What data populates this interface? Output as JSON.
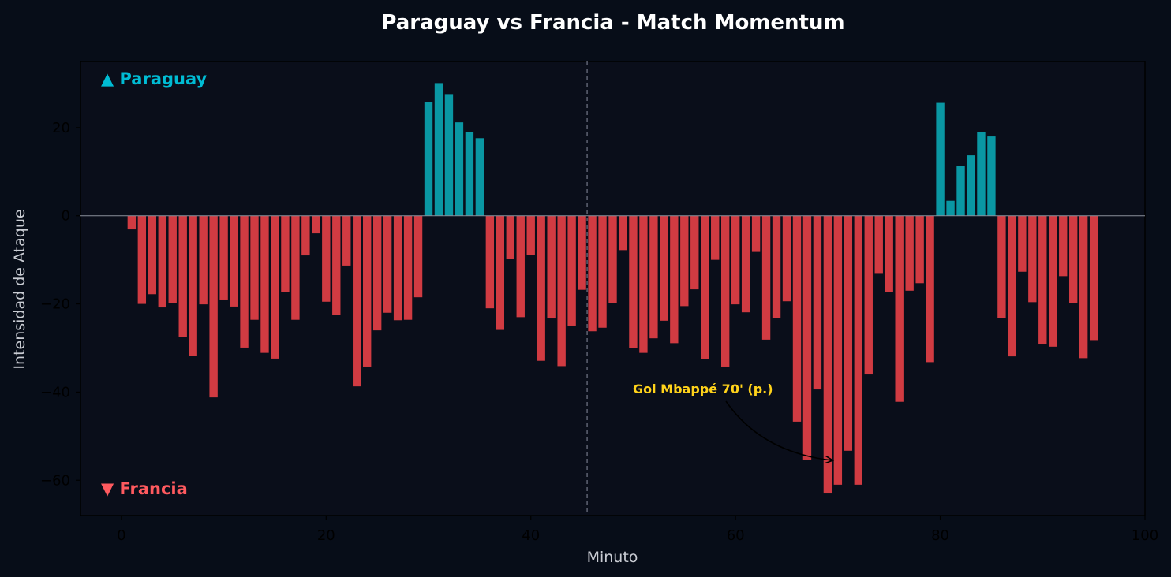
{
  "chart_data": {
    "type": "bar",
    "title": "Paraguay vs Francia - Match Momentum",
    "xlabel": "Minuto",
    "ylabel": "Intensidad de Ataque",
    "xlim": [
      -4,
      100
    ],
    "ylim": [
      -68,
      35
    ],
    "xticks": [
      0,
      20,
      40,
      60,
      80,
      100
    ],
    "yticks": [
      -60,
      -40,
      -20,
      0,
      20
    ],
    "ytick_labels": [
      "−60",
      "−40",
      "−20",
      "0",
      "20"
    ],
    "halftime_minute": 45.5,
    "series": [
      {
        "name": "▲ Paraguay",
        "color": "#0a97a3",
        "label_color": "#00bcd4"
      },
      {
        "name": "▼ Francia",
        "color": "#d13b42",
        "label_color": "#ff5a5f"
      }
    ],
    "x": [
      1,
      2,
      3,
      4,
      5,
      6,
      7,
      8,
      9,
      10,
      11,
      12,
      13,
      14,
      15,
      16,
      17,
      18,
      19,
      20,
      21,
      22,
      23,
      24,
      25,
      26,
      27,
      28,
      29,
      30,
      31,
      32,
      33,
      34,
      35,
      36,
      37,
      38,
      39,
      40,
      41,
      42,
      43,
      44,
      45,
      46,
      47,
      48,
      49,
      50,
      51,
      52,
      53,
      54,
      55,
      56,
      57,
      58,
      59,
      60,
      61,
      62,
      63,
      64,
      65,
      66,
      67,
      68,
      69,
      70,
      71,
      72,
      73,
      74,
      75,
      76,
      77,
      78,
      79,
      80,
      81,
      82,
      83,
      84,
      85,
      86,
      87,
      88,
      89,
      90,
      91,
      92,
      93,
      94,
      95
    ],
    "values": [
      -3.1,
      -20,
      -17.8,
      -20.8,
      -19.8,
      -27.5,
      -31.7,
      -20.1,
      -41.2,
      -19,
      -20.6,
      -29.9,
      -23.6,
      -31.1,
      -32.4,
      -17.3,
      -23.6,
      -9,
      -4,
      -19.5,
      -22.5,
      -11.3,
      -38.7,
      -34.2,
      -26,
      -22,
      -23.7,
      -23.6,
      -18.5,
      25.7,
      30.1,
      27.6,
      21.2,
      19,
      17.6,
      -21,
      -25.9,
      -9.8,
      -23,
      -8.9,
      -32.9,
      -23.3,
      -34.1,
      -24.9,
      -16.8,
      -26.2,
      -25.4,
      -19.8,
      -7.8,
      -30,
      -31.1,
      -27.8,
      -23.8,
      -28.9,
      -20.5,
      -16.7,
      -32.5,
      -10,
      -34.2,
      -20.1,
      -21.9,
      -8.2,
      -28.1,
      -23.2,
      -19.4,
      -46.7,
      -55.4,
      -39.4,
      -63,
      -61,
      -53.3,
      -61,
      -36,
      -13,
      -17.3,
      -42.2,
      -17,
      -15.3,
      -33.2,
      25.6,
      3.4,
      11.3,
      13.7,
      19,
      18,
      -23.2,
      -31.9,
      -12.7,
      -19.6,
      -29.2,
      -29.7,
      -13.7,
      -19.8,
      -32.3,
      -28.2
    ],
    "annotation": {
      "text": "Gol Mbappé 70' (p.)",
      "minute": 69.5,
      "value": -55.5,
      "color": "#ffd21a"
    },
    "grid": false,
    "background": "#070d18"
  }
}
